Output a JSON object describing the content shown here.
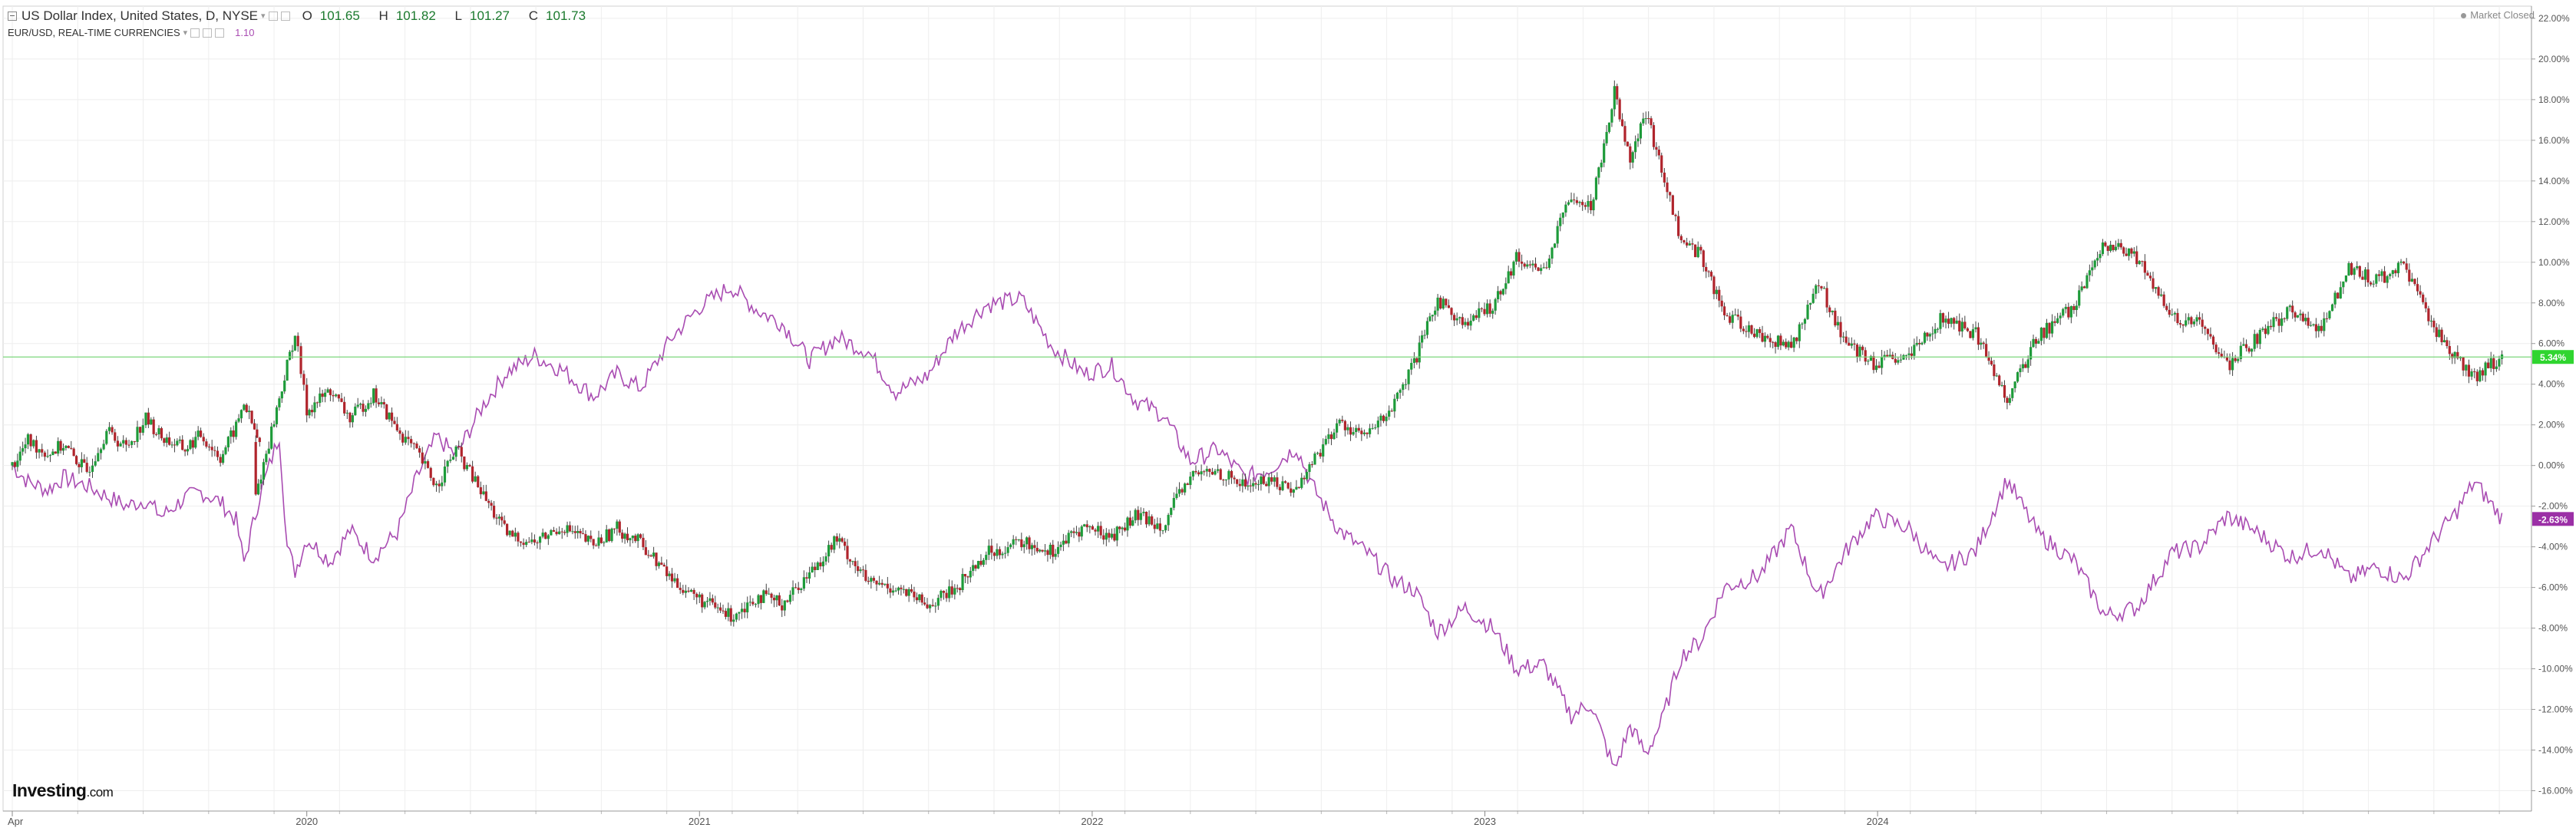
{
  "legend": {
    "main_title": "US Dollar Index, United States, D, NYSE",
    "ohlc": {
      "o_label": "O",
      "o": "101.65",
      "h_label": "H",
      "h": "101.82",
      "l_label": "L",
      "l": "101.27",
      "c_label": "C",
      "c": "101.73"
    },
    "sub_title": "EUR/USD, REAL-TIME CURRENCIES",
    "sub_value": "1.10"
  },
  "status": "Market Closed",
  "logo": {
    "brand": "Investing",
    "domain": ".com"
  },
  "colors": {
    "up": "#1e9b3a",
    "down": "#b0242c",
    "eurusd": "#a94cb2",
    "hline": "#7dd67d",
    "dxy_badge": "#2fd52f",
    "eur_badge": "#9b2fa6",
    "grid": "#eeeeee"
  },
  "chart_data": {
    "type": "line",
    "x_tick_labels": [
      "Apr",
      "2020",
      "2021",
      "2022",
      "2023",
      "2024"
    ],
    "y_tick_labels": [
      "22.00%",
      "20.00%",
      "18.00%",
      "16.00%",
      "14.00%",
      "12.00%",
      "10.00%",
      "8.00%",
      "6.00%",
      "4.00%",
      "2.00%",
      "0.00%",
      "-2.00%",
      "-4.00%",
      "-6.00%",
      "-8.00%",
      "-10.00%",
      "-12.00%",
      "-14.00%",
      "-16.00%"
    ],
    "ylim": [
      -17.0,
      22.6
    ],
    "grid": true,
    "reference_line_value": 5.34,
    "series": [
      {
        "label": "US Dollar Index",
        "style": "candlestick",
        "last_badge": "5.34%",
        "points": [
          {
            "t": 0.0,
            "v": 0.0
          },
          {
            "t": 0.04,
            "v": 1.2
          },
          {
            "t": 0.09,
            "v": 0.6
          },
          {
            "t": 0.13,
            "v": 1.0
          },
          {
            "t": 0.19,
            "v": -0.3
          },
          {
            "t": 0.24,
            "v": 1.7
          },
          {
            "t": 0.29,
            "v": 0.9
          },
          {
            "t": 0.34,
            "v": 2.3
          },
          {
            "t": 0.38,
            "v": 1.4
          },
          {
            "t": 0.44,
            "v": 0.8
          },
          {
            "t": 0.48,
            "v": 1.5
          },
          {
            "t": 0.53,
            "v": 0.4
          },
          {
            "t": 0.57,
            "v": 1.9
          },
          {
            "t": 0.59,
            "v": 3.1
          },
          {
            "t": 0.63,
            "v": 1.0
          },
          {
            "t": 0.62,
            "v": -1.5
          },
          {
            "t": 0.72,
            "v": 6.5
          },
          {
            "t": 0.75,
            "v": 2.7
          },
          {
            "t": 0.81,
            "v": 3.7
          },
          {
            "t": 0.86,
            "v": 2.3
          },
          {
            "t": 0.92,
            "v": 3.5
          },
          {
            "t": 0.98,
            "v": 1.8
          },
          {
            "t": 1.03,
            "v": 0.6
          },
          {
            "t": 1.08,
            "v": -1.0
          },
          {
            "t": 1.13,
            "v": 0.8
          },
          {
            "t": 1.2,
            "v": -1.5
          },
          {
            "t": 1.26,
            "v": -3.4
          },
          {
            "t": 1.33,
            "v": -3.8
          },
          {
            "t": 1.4,
            "v": -3.0
          },
          {
            "t": 1.48,
            "v": -3.9
          },
          {
            "t": 1.54,
            "v": -3.1
          },
          {
            "t": 1.6,
            "v": -3.8
          },
          {
            "t": 1.68,
            "v": -5.6
          },
          {
            "t": 1.75,
            "v": -6.6
          },
          {
            "t": 1.83,
            "v": -7.4
          },
          {
            "t": 1.9,
            "v": -6.4
          },
          {
            "t": 1.96,
            "v": -6.8
          },
          {
            "t": 2.03,
            "v": -5.3
          },
          {
            "t": 2.1,
            "v": -3.6
          },
          {
            "t": 2.18,
            "v": -5.8
          },
          {
            "t": 2.25,
            "v": -6.0
          },
          {
            "t": 2.33,
            "v": -6.9
          },
          {
            "t": 2.4,
            "v": -6.1
          },
          {
            "t": 2.48,
            "v": -4.3
          },
          {
            "t": 2.57,
            "v": -3.8
          },
          {
            "t": 2.65,
            "v": -4.2
          },
          {
            "t": 2.73,
            "v": -3.0
          },
          {
            "t": 2.8,
            "v": -3.5
          },
          {
            "t": 2.86,
            "v": -2.5
          },
          {
            "t": 2.93,
            "v": -2.9
          },
          {
            "t": 3.0,
            "v": -0.5
          },
          {
            "t": 3.07,
            "v": -0.3
          },
          {
            "t": 3.14,
            "v": -1.0
          },
          {
            "t": 3.2,
            "v": -0.7
          },
          {
            "t": 3.27,
            "v": -1.2
          },
          {
            "t": 3.31,
            "v": 0.2
          },
          {
            "t": 3.38,
            "v": 2.1
          },
          {
            "t": 3.45,
            "v": 1.4
          },
          {
            "t": 3.52,
            "v": 3.0
          },
          {
            "t": 3.57,
            "v": 5.0
          },
          {
            "t": 3.63,
            "v": 8.2
          },
          {
            "t": 3.7,
            "v": 6.9
          },
          {
            "t": 3.77,
            "v": 7.9
          },
          {
            "t": 3.83,
            "v": 10.2
          },
          {
            "t": 3.9,
            "v": 9.6
          },
          {
            "t": 3.97,
            "v": 13.4
          },
          {
            "t": 4.02,
            "v": 12.7
          },
          {
            "t": 4.08,
            "v": 18.4
          },
          {
            "t": 4.12,
            "v": 15.2
          },
          {
            "t": 4.16,
            "v": 17.3
          },
          {
            "t": 4.2,
            "v": 14.6
          },
          {
            "t": 4.25,
            "v": 11.0
          },
          {
            "t": 4.3,
            "v": 10.4
          },
          {
            "t": 4.36,
            "v": 7.4
          },
          {
            "t": 4.45,
            "v": 6.4
          },
          {
            "t": 4.53,
            "v": 5.8
          },
          {
            "t": 4.6,
            "v": 9.0
          },
          {
            "t": 4.67,
            "v": 6.0
          },
          {
            "t": 4.74,
            "v": 5.0
          },
          {
            "t": 4.83,
            "v": 5.3
          },
          {
            "t": 4.91,
            "v": 7.2
          },
          {
            "t": 5.0,
            "v": 6.5
          },
          {
            "t": 5.08,
            "v": 3.3
          },
          {
            "t": 5.16,
            "v": 6.4
          },
          {
            "t": 5.25,
            "v": 7.8
          },
          {
            "t": 5.33,
            "v": 10.9
          },
          {
            "t": 5.41,
            "v": 10.2
          },
          {
            "t": 5.5,
            "v": 7.2
          },
          {
            "t": 5.57,
            "v": 7.0
          },
          {
            "t": 5.64,
            "v": 4.9
          },
          {
            "t": 5.71,
            "v": 6.2
          },
          {
            "t": 5.8,
            "v": 7.6
          },
          {
            "t": 5.88,
            "v": 6.7
          },
          {
            "t": 5.95,
            "v": 9.8
          },
          {
            "t": 6.02,
            "v": 9.1
          },
          {
            "t": 6.09,
            "v": 9.8
          },
          {
            "t": 6.16,
            "v": 7.0
          },
          {
            "t": 6.22,
            "v": 5.4
          },
          {
            "t": 6.27,
            "v": 4.4
          },
          {
            "t": 6.34,
            "v": 5.3
          }
        ]
      },
      {
        "label": "EUR/USD",
        "style": "line",
        "last_badge": "-2.63%",
        "points": [
          {
            "t": 0.0,
            "v": 0.0
          },
          {
            "t": 0.04,
            "v": -0.8
          },
          {
            "t": 0.09,
            "v": -1.2
          },
          {
            "t": 0.13,
            "v": -0.6
          },
          {
            "t": 0.19,
            "v": -1.0
          },
          {
            "t": 0.24,
            "v": -1.5
          },
          {
            "t": 0.29,
            "v": -2.0
          },
          {
            "t": 0.34,
            "v": -1.7
          },
          {
            "t": 0.38,
            "v": -2.5
          },
          {
            "t": 0.44,
            "v": -1.6
          },
          {
            "t": 0.48,
            "v": -1.3
          },
          {
            "t": 0.53,
            "v": -1.8
          },
          {
            "t": 0.57,
            "v": -2.7
          },
          {
            "t": 0.59,
            "v": -4.8
          },
          {
            "t": 0.63,
            "v": -1.5
          },
          {
            "t": 0.68,
            "v": 1.5
          },
          {
            "t": 0.7,
            "v": -4.0
          },
          {
            "t": 0.72,
            "v": -5.2
          },
          {
            "t": 0.75,
            "v": -3.6
          },
          {
            "t": 0.81,
            "v": -4.7
          },
          {
            "t": 0.86,
            "v": -3.2
          },
          {
            "t": 0.92,
            "v": -4.5
          },
          {
            "t": 0.98,
            "v": -3.3
          },
          {
            "t": 1.03,
            "v": -0.6
          },
          {
            "t": 1.08,
            "v": 1.4
          },
          {
            "t": 1.13,
            "v": 0.5
          },
          {
            "t": 1.2,
            "v": 3.0
          },
          {
            "t": 1.26,
            "v": 4.6
          },
          {
            "t": 1.33,
            "v": 5.4
          },
          {
            "t": 1.4,
            "v": 4.7
          },
          {
            "t": 1.48,
            "v": 3.4
          },
          {
            "t": 1.54,
            "v": 4.5
          },
          {
            "t": 1.6,
            "v": 3.8
          },
          {
            "t": 1.68,
            "v": 6.3
          },
          {
            "t": 1.75,
            "v": 7.8
          },
          {
            "t": 1.83,
            "v": 8.8
          },
          {
            "t": 1.9,
            "v": 7.6
          },
          {
            "t": 1.96,
            "v": 7.0
          },
          {
            "t": 2.03,
            "v": 5.2
          },
          {
            "t": 2.1,
            "v": 6.3
          },
          {
            "t": 2.18,
            "v": 5.6
          },
          {
            "t": 2.25,
            "v": 3.6
          },
          {
            "t": 2.33,
            "v": 4.4
          },
          {
            "t": 2.4,
            "v": 6.5
          },
          {
            "t": 2.48,
            "v": 7.9
          },
          {
            "t": 2.57,
            "v": 8.2
          },
          {
            "t": 2.65,
            "v": 5.8
          },
          {
            "t": 2.73,
            "v": 4.5
          },
          {
            "t": 2.8,
            "v": 4.9
          },
          {
            "t": 2.86,
            "v": 3.2
          },
          {
            "t": 2.93,
            "v": 2.5
          },
          {
            "t": 3.0,
            "v": 0.2
          },
          {
            "t": 3.07,
            "v": 0.8
          },
          {
            "t": 3.14,
            "v": -0.6
          },
          {
            "t": 3.2,
            "v": -0.2
          },
          {
            "t": 3.27,
            "v": 0.9
          },
          {
            "t": 3.31,
            "v": -1.0
          },
          {
            "t": 3.38,
            "v": -3.2
          },
          {
            "t": 3.45,
            "v": -4.3
          },
          {
            "t": 3.52,
            "v": -5.7
          },
          {
            "t": 3.57,
            "v": -6.1
          },
          {
            "t": 3.63,
            "v": -8.2
          },
          {
            "t": 3.7,
            "v": -7.0
          },
          {
            "t": 3.77,
            "v": -8.0
          },
          {
            "t": 3.83,
            "v": -10.0
          },
          {
            "t": 3.9,
            "v": -9.8
          },
          {
            "t": 3.97,
            "v": -12.3
          },
          {
            "t": 4.02,
            "v": -11.7
          },
          {
            "t": 4.08,
            "v": -15.0
          },
          {
            "t": 4.12,
            "v": -12.8
          },
          {
            "t": 4.16,
            "v": -14.2
          },
          {
            "t": 4.2,
            "v": -12.6
          },
          {
            "t": 4.25,
            "v": -9.4
          },
          {
            "t": 4.3,
            "v": -8.6
          },
          {
            "t": 4.36,
            "v": -6.0
          },
          {
            "t": 4.45,
            "v": -5.4
          },
          {
            "t": 4.53,
            "v": -3.1
          },
          {
            "t": 4.6,
            "v": -6.5
          },
          {
            "t": 4.67,
            "v": -4.2
          },
          {
            "t": 4.74,
            "v": -2.5
          },
          {
            "t": 4.83,
            "v": -3.1
          },
          {
            "t": 4.91,
            "v": -5.1
          },
          {
            "t": 5.0,
            "v": -4.2
          },
          {
            "t": 5.08,
            "v": -0.7
          },
          {
            "t": 5.16,
            "v": -3.4
          },
          {
            "t": 5.25,
            "v": -4.7
          },
          {
            "t": 5.33,
            "v": -7.4
          },
          {
            "t": 5.41,
            "v": -7.0
          },
          {
            "t": 5.5,
            "v": -4.3
          },
          {
            "t": 5.57,
            "v": -4.0
          },
          {
            "t": 5.64,
            "v": -2.5
          },
          {
            "t": 5.71,
            "v": -3.2
          },
          {
            "t": 5.8,
            "v": -4.5
          },
          {
            "t": 5.88,
            "v": -4.0
          },
          {
            "t": 5.95,
            "v": -5.6
          },
          {
            "t": 6.02,
            "v": -5.0
          },
          {
            "t": 6.09,
            "v": -5.6
          },
          {
            "t": 6.16,
            "v": -3.8
          },
          {
            "t": 6.22,
            "v": -2.4
          },
          {
            "t": 6.27,
            "v": -0.8
          },
          {
            "t": 6.34,
            "v": -2.6
          }
        ]
      }
    ]
  }
}
